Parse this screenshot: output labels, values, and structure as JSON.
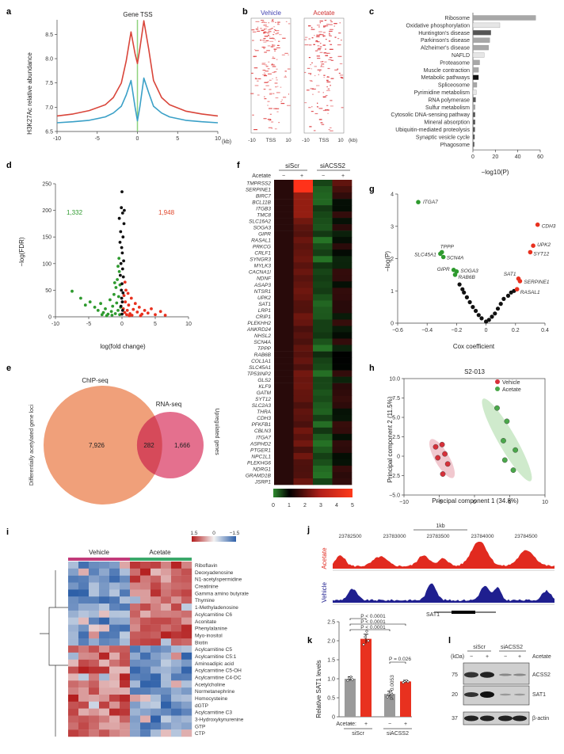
{
  "panel_labels": {
    "a": "a",
    "b": "b",
    "c": "c",
    "d": "d",
    "e": "e",
    "f": "f",
    "g": "g",
    "h": "h",
    "i": "i",
    "j": "j",
    "k": "k",
    "l": "l"
  },
  "chart_data": [
    {
      "panel": "a",
      "type": "line",
      "title": "Gene TSS",
      "ylabel": "H3K27Ac relative abundance",
      "xunit": "(kb)",
      "xlim": [
        -10,
        10
      ],
      "ylim": [
        6.5,
        8.8
      ],
      "xticks": [
        "-10",
        "-5",
        "0",
        "5",
        "10"
      ],
      "yticks": [
        "6.5",
        "7.0",
        "7.5",
        "8.0",
        "8.5"
      ],
      "series": [
        {
          "color": "#d9453a",
          "x": [
            -10,
            -8,
            -6,
            -4,
            -3,
            -2,
            -1.4,
            -0.8,
            -0.3,
            0,
            0.3,
            0.8,
            1.4,
            2,
            3,
            4,
            6,
            8,
            10
          ],
          "values": [
            6.82,
            6.86,
            6.93,
            7.05,
            7.2,
            7.5,
            7.95,
            8.55,
            8.1,
            7.9,
            8.2,
            8.78,
            8.2,
            7.55,
            7.2,
            7.05,
            6.92,
            6.86,
            6.82
          ]
        },
        {
          "color": "#3aa0c7",
          "x": [
            -10,
            -8,
            -6,
            -4,
            -3,
            -2,
            -1.4,
            -0.8,
            -0.3,
            0,
            0.3,
            0.8,
            1.4,
            2,
            3,
            4,
            6,
            8,
            10
          ],
          "values": [
            6.68,
            6.7,
            6.73,
            6.8,
            6.88,
            7.02,
            7.25,
            7.55,
            7.0,
            6.72,
            7.0,
            7.6,
            7.3,
            7.02,
            6.88,
            6.8,
            6.73,
            6.7,
            6.68
          ]
        }
      ],
      "tss_marker_color": "#8fd37f"
    },
    {
      "panel": "b",
      "type": "heatmap",
      "groups": [
        "Vehicle",
        "Acetate"
      ],
      "xticks": [
        "-10",
        "TSS",
        "10",
        "-10",
        "TSS",
        "10"
      ],
      "xunit": "(kb)"
    },
    {
      "panel": "c",
      "type": "bar",
      "categories": [
        "Ribosome",
        "Oxidative phosphorylation",
        "Huntington's disease",
        "Parkinson's disease",
        "Alzheimer's disease",
        "NAFLD",
        "Proteasome",
        "Muscle contraction",
        "Metabolic pathways",
        "Spliceosome",
        "Pyrimidine metabolism",
        "RNA polymerase",
        "Sulfur metabolism",
        "Cytosolic DNA-sensing pathway",
        "Mineral absorption",
        "Ubiquitin-mediated proteolysis",
        "Synaptic vesicle cycle",
        "Phagosome"
      ],
      "values": [
        56,
        24,
        16,
        15,
        14,
        10,
        6,
        5,
        5,
        3.5,
        3,
        2.5,
        2,
        2,
        2,
        1.8,
        1.5,
        1.2
      ],
      "colors": [
        "#a8a8a8",
        "#e6e6e6",
        "#555555",
        "#a8a8a8",
        "#a8a8a8",
        "#e6e6e6",
        "#a8a8a8",
        "#a8a8a8",
        "#111111",
        "#a8a8a8",
        "#e6e6e6",
        "#555555",
        "#a8a8a8",
        "#555555",
        "#555555",
        "#555555",
        "#555555",
        "#555555"
      ],
      "xlim": [
        0,
        60
      ],
      "xticks": [
        "0",
        "20",
        "40",
        "60"
      ],
      "xlabel": "−log10(P)"
    },
    {
      "panel": "d",
      "type": "scatter",
      "xlabel": "log(fold change)",
      "ylabel": "−log(FDR)",
      "xlim": [
        -10,
        10
      ],
      "ylim": [
        0,
        250
      ],
      "xticks": [
        "-10",
        "-5",
        "0",
        "5",
        "10"
      ],
      "yticks": [
        "0",
        "50",
        "100",
        "150",
        "200",
        "250"
      ],
      "annotations": {
        "down_count": "1,332",
        "up_count": "1,948"
      },
      "points": [
        {
          "x": -7.5,
          "y": 48,
          "c": "g"
        },
        {
          "x": -6.2,
          "y": 35,
          "c": "g"
        },
        {
          "x": -5.5,
          "y": 22,
          "c": "g"
        },
        {
          "x": -4.8,
          "y": 28,
          "c": "g"
        },
        {
          "x": -4.1,
          "y": 18,
          "c": "g"
        },
        {
          "x": -3.6,
          "y": 12,
          "c": "g"
        },
        {
          "x": -3.2,
          "y": 25,
          "c": "g"
        },
        {
          "x": -2.8,
          "y": 8,
          "c": "g"
        },
        {
          "x": -2.5,
          "y": 15,
          "c": "g"
        },
        {
          "x": -2.1,
          "y": 5,
          "c": "g"
        },
        {
          "x": -1.8,
          "y": 32,
          "c": "g"
        },
        {
          "x": -1.6,
          "y": 10,
          "c": "g"
        },
        {
          "x": -1.4,
          "y": 20,
          "c": "g"
        },
        {
          "x": -1.2,
          "y": 42,
          "c": "g"
        },
        {
          "x": -1.0,
          "y": 6,
          "c": "g"
        },
        {
          "x": -0.9,
          "y": 55,
          "c": "g"
        },
        {
          "x": -0.8,
          "y": 26,
          "c": "g"
        },
        {
          "x": -0.7,
          "y": 70,
          "c": "g"
        },
        {
          "x": -0.6,
          "y": 12,
          "c": "g"
        },
        {
          "x": -0.5,
          "y": 38,
          "c": "g"
        },
        {
          "x": -0.4,
          "y": 85,
          "c": "g"
        },
        {
          "x": -0.35,
          "y": 4,
          "c": "g"
        },
        {
          "x": -0.3,
          "y": 60,
          "c": "g"
        },
        {
          "x": -0.2,
          "y": 18,
          "c": "g"
        },
        {
          "x": -1.5,
          "y": 3,
          "c": "g"
        },
        {
          "x": -2.3,
          "y": 2,
          "c": "g"
        },
        {
          "x": -3.0,
          "y": 4,
          "c": "g"
        },
        {
          "x": -0.6,
          "y": 95,
          "c": "g"
        },
        {
          "x": -1.1,
          "y": 64,
          "c": "g"
        },
        {
          "x": -0.45,
          "y": 110,
          "c": "g"
        },
        {
          "x": 0.2,
          "y": 15,
          "c": "r"
        },
        {
          "x": 0.3,
          "y": 40,
          "c": "r"
        },
        {
          "x": 0.4,
          "y": 8,
          "c": "r"
        },
        {
          "x": 0.5,
          "y": 28,
          "c": "r"
        },
        {
          "x": 0.6,
          "y": 50,
          "c": "r"
        },
        {
          "x": 0.8,
          "y": 12,
          "c": "r"
        },
        {
          "x": 1.0,
          "y": 22,
          "c": "r"
        },
        {
          "x": 1.2,
          "y": 6,
          "c": "r"
        },
        {
          "x": 1.4,
          "y": 35,
          "c": "r"
        },
        {
          "x": 1.7,
          "y": 14,
          "c": "r"
        },
        {
          "x": 2.0,
          "y": 25,
          "c": "r"
        },
        {
          "x": 2.3,
          "y": 9,
          "c": "r"
        },
        {
          "x": 2.6,
          "y": 18,
          "c": "r"
        },
        {
          "x": 3.0,
          "y": 5,
          "c": "r"
        },
        {
          "x": 3.4,
          "y": 12,
          "c": "r"
        },
        {
          "x": 3.9,
          "y": 7,
          "c": "r"
        },
        {
          "x": 4.4,
          "y": 15,
          "c": "r"
        },
        {
          "x": 5.0,
          "y": 4,
          "c": "r"
        },
        {
          "x": 5.8,
          "y": 10,
          "c": "r"
        },
        {
          "x": 6.5,
          "y": 3,
          "c": "r"
        },
        {
          "x": 0.7,
          "y": 4,
          "c": "r"
        },
        {
          "x": 1.5,
          "y": 3,
          "c": "r"
        },
        {
          "x": 2.8,
          "y": 2,
          "c": "r"
        },
        {
          "x": 0.45,
          "y": 65,
          "c": "r"
        },
        {
          "x": 0.9,
          "y": 44,
          "c": "r"
        },
        {
          "x": 1.1,
          "y": 2,
          "c": "r"
        },
        {
          "x": 0.0,
          "y": 235,
          "c": "k"
        },
        {
          "x": -0.1,
          "y": 205,
          "c": "k"
        },
        {
          "x": 0.1,
          "y": 195,
          "c": "k"
        },
        {
          "x": -0.2,
          "y": 160,
          "c": "k"
        },
        {
          "x": 0.15,
          "y": 150,
          "c": "k"
        },
        {
          "x": -0.05,
          "y": 130,
          "c": "k"
        },
        {
          "x": 0.05,
          "y": 120,
          "c": "k"
        },
        {
          "x": 0.25,
          "y": 105,
          "c": "k"
        },
        {
          "x": -0.15,
          "y": 100,
          "c": "k"
        },
        {
          "x": 0.1,
          "y": 90,
          "c": "k"
        },
        {
          "x": -0.25,
          "y": 78,
          "c": "k"
        },
        {
          "x": 0.2,
          "y": 75,
          "c": "k"
        },
        {
          "x": 0.0,
          "y": 62,
          "c": "k"
        },
        {
          "x": -0.1,
          "y": 50,
          "c": "k"
        },
        {
          "x": 0.15,
          "y": 45,
          "c": "k"
        },
        {
          "x": -0.05,
          "y": 35,
          "c": "k"
        },
        {
          "x": 0.05,
          "y": 28,
          "c": "k"
        },
        {
          "x": -0.15,
          "y": 20,
          "c": "k"
        },
        {
          "x": 0.1,
          "y": 12,
          "c": "k"
        },
        {
          "x": 0.0,
          "y": 5,
          "c": "k"
        },
        {
          "x": 0.3,
          "y": 175,
          "c": "k"
        },
        {
          "x": -0.3,
          "y": 140,
          "c": "k"
        },
        {
          "x": 0.35,
          "y": 200,
          "c": "k"
        },
        {
          "x": -0.4,
          "y": 185,
          "c": "k"
        }
      ]
    },
    {
      "panel": "e",
      "type": "venn",
      "sets": [
        "ChIP-seq",
        "RNA-seq"
      ],
      "left_only": "7,926",
      "overlap": "282",
      "right_only": "1,666",
      "left_caption": "Differentially acetylated gene loci",
      "right_caption": "Upregulated genes"
    },
    {
      "panel": "f",
      "type": "heatmap",
      "groups": [
        "siScr",
        "siACSS2"
      ],
      "row_label": "Acetate",
      "conditions": [
        "−",
        "+",
        "−",
        "+"
      ],
      "genes": [
        "TMPRSS2",
        "SERPINE1",
        "BIRC7",
        "BCL11B",
        "ITGB3",
        "TMC8",
        "SLC16A2",
        "SOGA3",
        "GIPR",
        "RASAL1",
        "PRKCG",
        "CRLF1",
        "SYNGR3",
        "MYLK3",
        "CACNA1I",
        "NDNF",
        "ASAP3",
        "NTSR1",
        "UPK2",
        "SAT1",
        "LRP1",
        "CRIP1",
        "PLEKHH2",
        "ANKRD24",
        "NHSL2",
        "SCN4A",
        "TPPP",
        "RAB6B",
        "COL1A1",
        "SLC45A1",
        "TP53INP2",
        "GLS2",
        "KLF9",
        "GATM",
        "SYT12",
        "SLC2A3",
        "THRA",
        "CDH3",
        "PFKFB1",
        "CBLN3",
        "ITGA7",
        "ASPHD2",
        "PTGER1",
        "NPC1L1",
        "PLEKHG6",
        "NDRG1",
        "GRAMD1B",
        "JSRP1"
      ],
      "colorbar_ticks": [
        "0",
        "1",
        "2",
        "3",
        "4",
        "5"
      ],
      "colorbar_range": [
        0,
        5
      ]
    },
    {
      "panel": "g",
      "type": "scatter",
      "xlabel": "Cox coefficient",
      "ylabel": "−log(P)",
      "xlim": [
        -0.6,
        0.4
      ],
      "ylim": [
        0,
        4
      ],
      "xticks": [
        "−0.6",
        "−0.4",
        "−0.2",
        "0",
        "0.2",
        "0.4"
      ],
      "yticks": [
        "0",
        "1",
        "2",
        "3",
        "4"
      ],
      "labeled_points": [
        {
          "label": "ITGA7",
          "x": -0.46,
          "y": 3.75,
          "c": "g"
        },
        {
          "label": "TPPP",
          "x": -0.3,
          "y": 2.2,
          "c": "g"
        },
        {
          "label": "SLC45A1",
          "x": -0.31,
          "y": 2.15,
          "c": "g"
        },
        {
          "label": "SCN4A",
          "x": -0.29,
          "y": 2.05,
          "c": "g"
        },
        {
          "label": "GIPR",
          "x": -0.22,
          "y": 1.65,
          "c": "g"
        },
        {
          "label": "SOGA3",
          "x": -0.2,
          "y": 1.6,
          "c": "g"
        },
        {
          "label": "RAB6B",
          "x": -0.21,
          "y": 1.5,
          "c": "g"
        },
        {
          "label": "CDH3",
          "x": 0.35,
          "y": 3.05,
          "c": "r"
        },
        {
          "label": "UPK2",
          "x": 0.32,
          "y": 2.4,
          "c": "r"
        },
        {
          "label": "SYT12",
          "x": 0.3,
          "y": 2.2,
          "c": "r"
        },
        {
          "label": "SAT1",
          "x": 0.22,
          "y": 1.38,
          "c": "r"
        },
        {
          "label": "SERPINE1",
          "x": 0.23,
          "y": 1.3,
          "c": "r"
        },
        {
          "label": "RASAL1",
          "x": 0.21,
          "y": 1.05,
          "c": "r"
        }
      ],
      "other_points": [
        {
          "x": -0.18,
          "y": 1.2
        },
        {
          "x": -0.16,
          "y": 1.05
        },
        {
          "x": -0.15,
          "y": 0.95
        },
        {
          "x": -0.13,
          "y": 0.8
        },
        {
          "x": -0.11,
          "y": 0.65
        },
        {
          "x": -0.09,
          "y": 0.5
        },
        {
          "x": -0.07,
          "y": 0.38
        },
        {
          "x": -0.05,
          "y": 0.25
        },
        {
          "x": -0.03,
          "y": 0.15
        },
        {
          "x": 0.0,
          "y": 0.05
        },
        {
          "x": 0.02,
          "y": 0.1
        },
        {
          "x": 0.04,
          "y": 0.2
        },
        {
          "x": 0.06,
          "y": 0.3
        },
        {
          "x": 0.08,
          "y": 0.45
        },
        {
          "x": 0.1,
          "y": 0.6
        },
        {
          "x": 0.12,
          "y": 0.75
        },
        {
          "x": 0.15,
          "y": 0.85
        },
        {
          "x": 0.17,
          "y": 0.95
        },
        {
          "x": 0.19,
          "y": 1.0
        }
      ]
    },
    {
      "panel": "h",
      "type": "scatter",
      "title": "S2-013",
      "xlabel": "Principal component 1 (34.8%)",
      "ylabel": "Principal component 2 (11.5%)",
      "xlim": [
        -10,
        10
      ],
      "ylim": [
        -5,
        10
      ],
      "xticks": [
        "−10",
        "−5",
        "0",
        "5",
        "10"
      ],
      "yticks": [
        "−5.0",
        "−2.5",
        "0",
        "2.5",
        "5.0",
        "7.5",
        "10.0"
      ],
      "legend": [
        "Vehicle",
        "Acetate"
      ],
      "series": [
        {
          "name": "Vehicle",
          "color": "#d7303a",
          "points": [
            [
              -5.5,
              1.2
            ],
            [
              -4.6,
              1.5
            ],
            [
              -4.2,
              0.3
            ],
            [
              -5.2,
              -0.2
            ],
            [
              -3.8,
              -1.0
            ],
            [
              -4.5,
              -2.3
            ]
          ]
        },
        {
          "name": "Acetate",
          "color": "#4aa84a",
          "points": [
            [
              3.2,
              6.2
            ],
            [
              4.6,
              4.5
            ],
            [
              4.1,
              2.0
            ],
            [
              5.8,
              0.8
            ],
            [
              4.3,
              -0.5
            ],
            [
              5.5,
              -1.8
            ]
          ]
        }
      ]
    },
    {
      "panel": "i",
      "type": "heatmap",
      "groups": [
        "Vehicle",
        "Acetate"
      ],
      "colorbar_ticks": [
        "1.5",
        "0",
        "−1.5"
      ],
      "metabolites": [
        "Riboflavin",
        "Deoxyadenosine",
        "N1-acetylspermidine",
        "Creatinine",
        "Gamma amino butyrate",
        "Thymine",
        "1-Methyladenosine",
        "Acylcarnitine C6",
        "Aconitate",
        "Phenylalanine",
        "Myo-inositol",
        "Biotin",
        "Acylcarnitine C5",
        "Acylcarnitine C5:1",
        "Aminoadipic acid",
        "Acylcarnitine C5-OH",
        "Acylcarnitine C4-DC",
        "Acetylcholine",
        "Normetanephrine",
        "Homocysteine",
        "dGTP",
        "Acylcarnitine C3",
        "3-Hydroxykynurenine",
        "GTP",
        "CTP"
      ]
    },
    {
      "panel": "j",
      "type": "area",
      "scale_label": "1kb",
      "coordinates": [
        "23782500",
        "23783000",
        "23783500",
        "23784000",
        "23784500"
      ],
      "tracks": [
        {
          "name": "Acetate",
          "color": "#e12a1f"
        },
        {
          "name": "Vehicle",
          "color": "#1f1f8f"
        }
      ],
      "gene": "SAT1"
    },
    {
      "panel": "k",
      "type": "bar",
      "ylabel": "Relative SAT1 levels",
      "ylim": [
        0,
        2.5
      ],
      "yticks": [
        "0",
        "0.5",
        "1.0",
        "1.5",
        "2.0",
        "2.5"
      ],
      "row_label": "Acetate:",
      "conditions": [
        "−",
        "+",
        "−",
        "+"
      ],
      "groups": [
        "siScr",
        "siACSS2"
      ],
      "values": [
        1.0,
        2.05,
        0.6,
        0.93
      ],
      "errors": [
        0.05,
        0.12,
        0.07,
        0.03
      ],
      "colors": [
        "#9a9a9a",
        "#e8311f",
        "#9a9a9a",
        "#e8311f"
      ],
      "points": [
        [
          0.95,
          1.02,
          1.05,
          0.98
        ],
        [
          1.9,
          2.1,
          2.25,
          2.0
        ],
        [
          0.52,
          0.6,
          0.68,
          0.58
        ],
        [
          0.9,
          0.93,
          0.95,
          0.92
        ]
      ],
      "pvalues": [
        "P < 0.0001",
        "P < 0.0001",
        "P < 0.0001",
        "P = 0.026",
        "P = 0.0053"
      ]
    },
    {
      "panel": "l",
      "type": "western_blot",
      "groups": [
        "siScr",
        "siACSS2"
      ],
      "row_label": "Acetate",
      "conditions": [
        "−",
        "+",
        "−",
        "+"
      ],
      "kda_label": "(kDa)",
      "markers": [
        "75",
        "20",
        "37"
      ],
      "bands": [
        "ACSS2",
        "SAT1",
        "β-actin"
      ]
    }
  ]
}
